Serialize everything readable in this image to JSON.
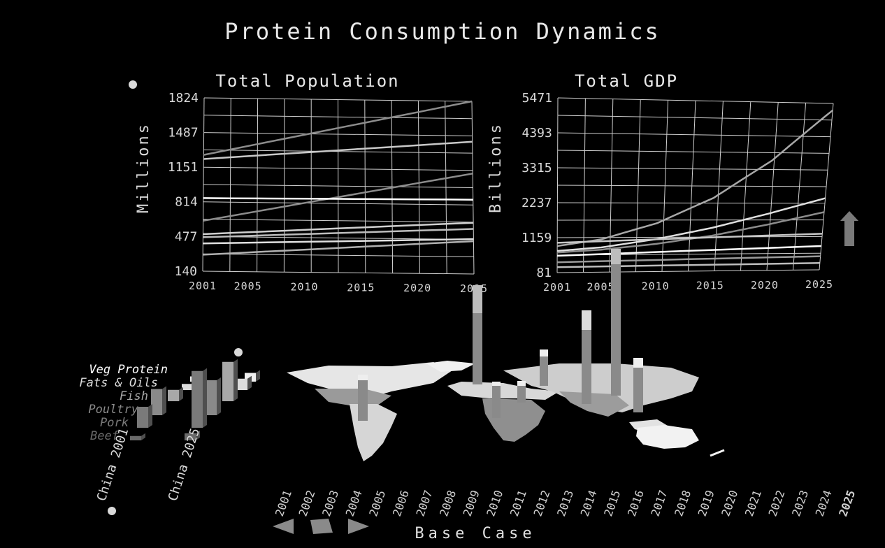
{
  "title": "Protein Consumption Dynamics",
  "scenario": "Base Case",
  "timeline": {
    "years": [
      "2001",
      "2002",
      "2003",
      "2004",
      "2005",
      "2006",
      "2007",
      "2008",
      "2009",
      "2010",
      "2011",
      "2012",
      "2013",
      "2014",
      "2015",
      "2016",
      "2017",
      "2018",
      "2019",
      "2020",
      "2021",
      "2022",
      "2023",
      "2024",
      "2025"
    ],
    "selected": "2025",
    "controls": [
      "rewind-icon",
      "stop-icon",
      "play-icon"
    ]
  },
  "colors": {
    "background": "#000000",
    "grid": "#cfcfcf",
    "land": "#e6e6e6",
    "bar": "#8a8a8a",
    "bar_top": "#f2f2f2"
  },
  "chart_data": [
    {
      "type": "line",
      "title": "Total Population",
      "ylabel": "Millions",
      "xlabel": "",
      "x_ticks": [
        "2001",
        "2005",
        "2010",
        "2015",
        "2020",
        "2025"
      ],
      "y_ticks": [
        140,
        477,
        814,
        1151,
        1487,
        1824
      ],
      "ylim": [
        140,
        1824
      ],
      "xlim": [
        2001,
        2025
      ],
      "grid": true,
      "series": [
        {
          "color": "#8c8c8c",
          "x": [
            2001,
            2025
          ],
          "values": [
            1270,
            1824
          ]
        },
        {
          "color": "#c8c8c8",
          "x": [
            2001,
            2025
          ],
          "values": [
            1230,
            1430
          ]
        },
        {
          "color": "#8c8c8c",
          "x": [
            2001,
            2025
          ],
          "values": [
            630,
            1120
          ]
        },
        {
          "color": "#ffffff",
          "x": [
            2001,
            2025
          ],
          "values": [
            850,
            865
          ]
        },
        {
          "color": "#d0d0d0",
          "x": [
            2001,
            2025
          ],
          "values": [
            500,
            640
          ]
        },
        {
          "color": "#bdbdbd",
          "x": [
            2001,
            2025
          ],
          "values": [
            470,
            580
          ]
        },
        {
          "color": "#e0e0e0",
          "x": [
            2001,
            2025
          ],
          "values": [
            410,
            480
          ]
        },
        {
          "color": "#b0b0b0",
          "x": [
            2001,
            2025
          ],
          "values": [
            300,
            460
          ]
        }
      ]
    },
    {
      "type": "line",
      "title": "Total GDP",
      "ylabel": "Billions",
      "xlabel": "",
      "x_ticks": [
        "2001",
        "2005",
        "2010",
        "2015",
        "2020",
        "2025"
      ],
      "y_ticks": [
        81,
        1159,
        2237,
        3315,
        4393,
        5471
      ],
      "ylim": [
        81,
        5471
      ],
      "xlim": [
        2001,
        2025
      ],
      "grid": true,
      "series": [
        {
          "color": "#a8a8a8",
          "x": [
            2001,
            2005,
            2010,
            2015,
            2020,
            2025
          ],
          "values": [
            900,
            1100,
            1600,
            2400,
            3600,
            5250
          ]
        },
        {
          "color": "#e0e0e0",
          "x": [
            2001,
            2005,
            2010,
            2015,
            2020,
            2025
          ],
          "values": [
            750,
            850,
            1100,
            1450,
            1900,
            2400
          ]
        },
        {
          "color": "#8c8c8c",
          "x": [
            2001,
            2005,
            2010,
            2015,
            2020,
            2025
          ],
          "values": [
            700,
            780,
            950,
            1200,
            1550,
            1950
          ]
        },
        {
          "color": "#c8c8c8",
          "x": [
            2001,
            2025
          ],
          "values": [
            1000,
            1250
          ]
        },
        {
          "color": "#ffffff",
          "x": [
            2001,
            2025
          ],
          "values": [
            600,
            850
          ]
        },
        {
          "color": "#9a9a9a",
          "x": [
            2001,
            2025
          ],
          "values": [
            400,
            520
          ]
        },
        {
          "color": "#bdbdbd",
          "x": [
            2001,
            2025
          ],
          "values": [
            250,
            300
          ]
        }
      ]
    },
    {
      "type": "bar",
      "title": "",
      "categories": [
        "Veg Protein",
        "Fats & Oils",
        "Fish",
        "Poultry",
        "Pork",
        "Beef"
      ],
      "category_colors": [
        "#ffffff",
        "#dcdcdc",
        "#a8a8a8",
        "#8a8a8a",
        "#7a7a7a",
        "#6a6a6a"
      ],
      "series": [
        {
          "name": "China 2001",
          "values": [
            6,
            7,
            13,
            30,
            24,
            5
          ]
        },
        {
          "name": "China 2025",
          "values": [
            10,
            13,
            45,
            40,
            65,
            8
          ]
        }
      ]
    }
  ]
}
